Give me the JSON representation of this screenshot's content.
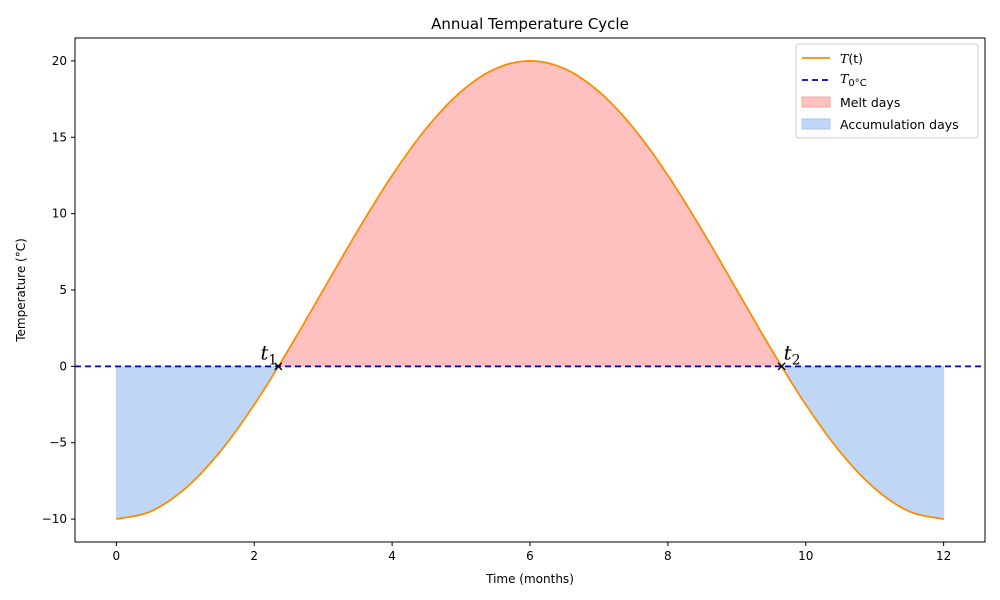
{
  "chart_data": {
    "type": "line",
    "title": "Annual Temperature Cycle",
    "xlabel": "Time (months)",
    "ylabel": "Temperature (°C)",
    "xlim": [
      -0.6,
      12.6
    ],
    "ylim": [
      -11.5,
      21.5
    ],
    "x_ticks": [
      0,
      2,
      4,
      6,
      8,
      10,
      12
    ],
    "y_ticks": [
      -10,
      -5,
      0,
      5,
      10,
      15,
      20
    ],
    "y_tick_labels": [
      "−10",
      "−5",
      "0",
      "5",
      "10",
      "15",
      "20"
    ],
    "grid": false,
    "legend_position": "top-right",
    "colors": {
      "curve": "#ff8c00",
      "threshold": "#0000cd",
      "melt_fill": "#ffc0c0",
      "accumulation_fill": "#c0d6f6"
    },
    "series": [
      {
        "name": "T(t)",
        "x": [
          0,
          0.5,
          1,
          1.5,
          2,
          2.5,
          3,
          3.5,
          4,
          4.5,
          5,
          5.5,
          6,
          6.5,
          7,
          7.5,
          8,
          8.5,
          9,
          9.5,
          10,
          10.5,
          11,
          11.5,
          12
        ],
        "y": [
          -10,
          -9.49,
          -7.99,
          -5.61,
          -2.5,
          1.12,
          5,
          8.88,
          12.5,
          15.61,
          17.99,
          19.49,
          20,
          19.49,
          17.99,
          15.61,
          12.5,
          8.88,
          5,
          1.12,
          -2.5,
          -5.61,
          -7.99,
          -9.49,
          -10
        ]
      },
      {
        "name": "T0°C",
        "y": 0
      }
    ],
    "legend": [
      {
        "key": "curve",
        "name": "T",
        "arg": "(t)"
      },
      {
        "key": "threshold",
        "name": "T",
        "sub": "0°C"
      },
      {
        "key": "melt",
        "name": "Melt days"
      },
      {
        "key": "accumulation",
        "name": "Accumulation days"
      }
    ],
    "fills": [
      {
        "name": "Melt days",
        "where": "T(t) > 0",
        "range": [
          2.35,
          9.65
        ]
      },
      {
        "name": "Accumulation days",
        "where": "T(t) < 0",
        "ranges": [
          [
            0,
            2.35
          ],
          [
            9.65,
            12
          ]
        ]
      }
    ],
    "annotations": [
      {
        "text": "t",
        "sub": "1",
        "x": 2.35,
        "y": 0,
        "marker": "x"
      },
      {
        "text": "t",
        "sub": "2",
        "x": 9.65,
        "y": 0,
        "marker": "x"
      }
    ]
  }
}
